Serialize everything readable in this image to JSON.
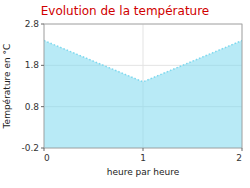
{
  "chart_data": {
    "type": "area",
    "title": "Evolution de la température",
    "xlabel": "heure par heure",
    "ylabel": "Température en °C",
    "x": [
      0,
      1,
      2
    ],
    "values": [
      2.4,
      1.4,
      2.4
    ],
    "color": "#7dd8ee",
    "line_style": "dotted",
    "xlim": [
      0,
      2
    ],
    "ylim": [
      -0.2,
      2.8
    ],
    "xticks": [
      0,
      1,
      2
    ],
    "yticks": [
      -0.2,
      0.8,
      1.8,
      2.8
    ],
    "grid": true
  }
}
